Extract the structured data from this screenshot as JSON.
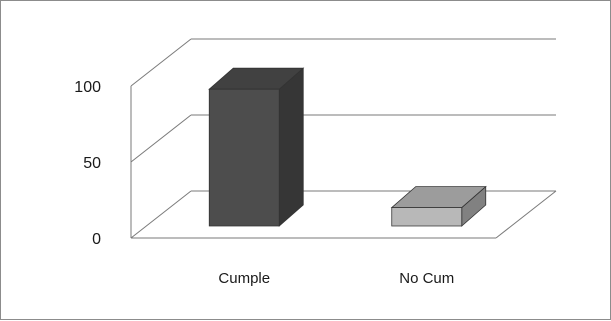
{
  "chart_data": {
    "type": "bar",
    "style": "3d-column",
    "categories": [
      "Cumple",
      "No Cum"
    ],
    "values": [
      83,
      9
    ],
    "ylim": [
      0,
      100
    ],
    "yticks": [
      0,
      50,
      100
    ],
    "grid": true,
    "legend": "none",
    "bar_colors": [
      "#4d4d4d",
      "#b8b8b8"
    ],
    "title": "",
    "xlabel": "",
    "ylabel": ""
  }
}
